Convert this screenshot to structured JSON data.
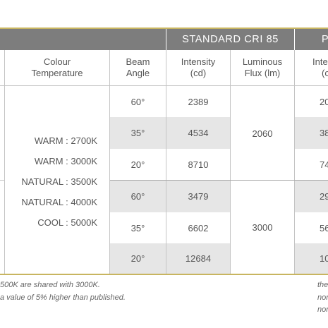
{
  "header": {
    "group_standard": "STANDARD CRI 85",
    "group_partial": "P"
  },
  "columns": {
    "colour_temperature": [
      "Colour",
      "Temperature"
    ],
    "beam_angle": [
      "Beam",
      "Angle"
    ],
    "intensity": [
      "Intensity",
      "(cd)"
    ],
    "luminous_flux": [
      "Luminous",
      "Flux (lm)"
    ],
    "partial_intensity": [
      "Inte",
      "(c"
    ]
  },
  "colour_temperatures": [
    "WARM : 2700K",
    "WARM : 3000K",
    "NATURAL : 3500K",
    "NATURAL : 4000K",
    "COOL : 5000K"
  ],
  "rows": [
    {
      "beam": "60°",
      "intensity": "2389",
      "partial": "20"
    },
    {
      "beam": "35°",
      "intensity": "4534",
      "partial": "38"
    },
    {
      "beam": "20°",
      "intensity": "8710",
      "partial": "74"
    },
    {
      "beam": "60°",
      "intensity": "3479",
      "partial": "29"
    },
    {
      "beam": "35°",
      "intensity": "6602",
      "partial": "56"
    },
    {
      "beam": "20°",
      "intensity": "12684",
      "partial": "10"
    }
  ],
  "luminous_flux": [
    "2060",
    "3000"
  ],
  "footnotes": {
    "left": [
      "500K are shared with 3000K.",
      "a value of 5% higher than published."
    ],
    "right": [
      "the",
      "nor",
      "nor"
    ]
  }
}
